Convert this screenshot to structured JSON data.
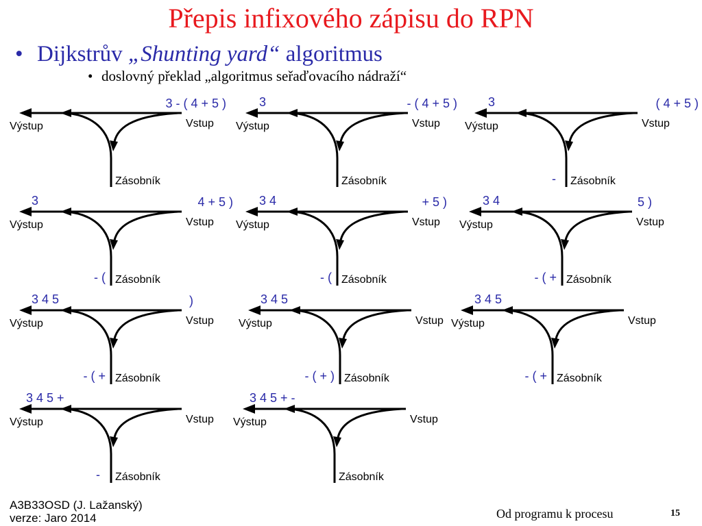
{
  "title": "Přepis infixového zápisu do RPN",
  "bullet1": {
    "pre": "Dijkstrův ",
    "italic": "„Shunting yard“",
    "post": " algoritmus"
  },
  "bullet2": "doslovný překlad „algoritmus seřaďovacího nádraží“",
  "labels": {
    "output": "Výstup",
    "input": "Vstup",
    "stack": "Zásobník"
  },
  "steps": [
    {
      "output": "",
      "input": "3 - ( 4 + 5 )",
      "stack": ""
    },
    {
      "output": "3",
      "input": "- ( 4 + 5 )",
      "stack": ""
    },
    {
      "output": "3",
      "input": "( 4 + 5 )",
      "stack": "-"
    },
    {
      "output": "3",
      "input": "4 + 5 )",
      "stack": "- ("
    },
    {
      "output": "3 4",
      "input": "+ 5 )",
      "stack": "- ("
    },
    {
      "output": "3 4",
      "input": "5 )",
      "stack": "- ( +"
    },
    {
      "output": "3 4 5",
      "input": ")",
      "stack": "- ( +"
    },
    {
      "output": "3 4 5",
      "input": "",
      "stack": "- ( + )"
    },
    {
      "output": "3 4 5",
      "input": "",
      "stack": "- ( +"
    },
    {
      "output": "3 4 5 +",
      "input": "",
      "stack": "-"
    },
    {
      "output": "3 4 5 + -",
      "input": "",
      "stack": ""
    }
  ],
  "footer": {
    "course": "A3B33OSD (J. Lažanský)",
    "version": "verze: Jaro 2014",
    "chapter": "Od programu k procesu",
    "page": "15"
  },
  "colors": {
    "title": "#e8191e",
    "bullet": "#2a2aa8",
    "tokens": "#2a2aa8",
    "lines": "#000000"
  }
}
